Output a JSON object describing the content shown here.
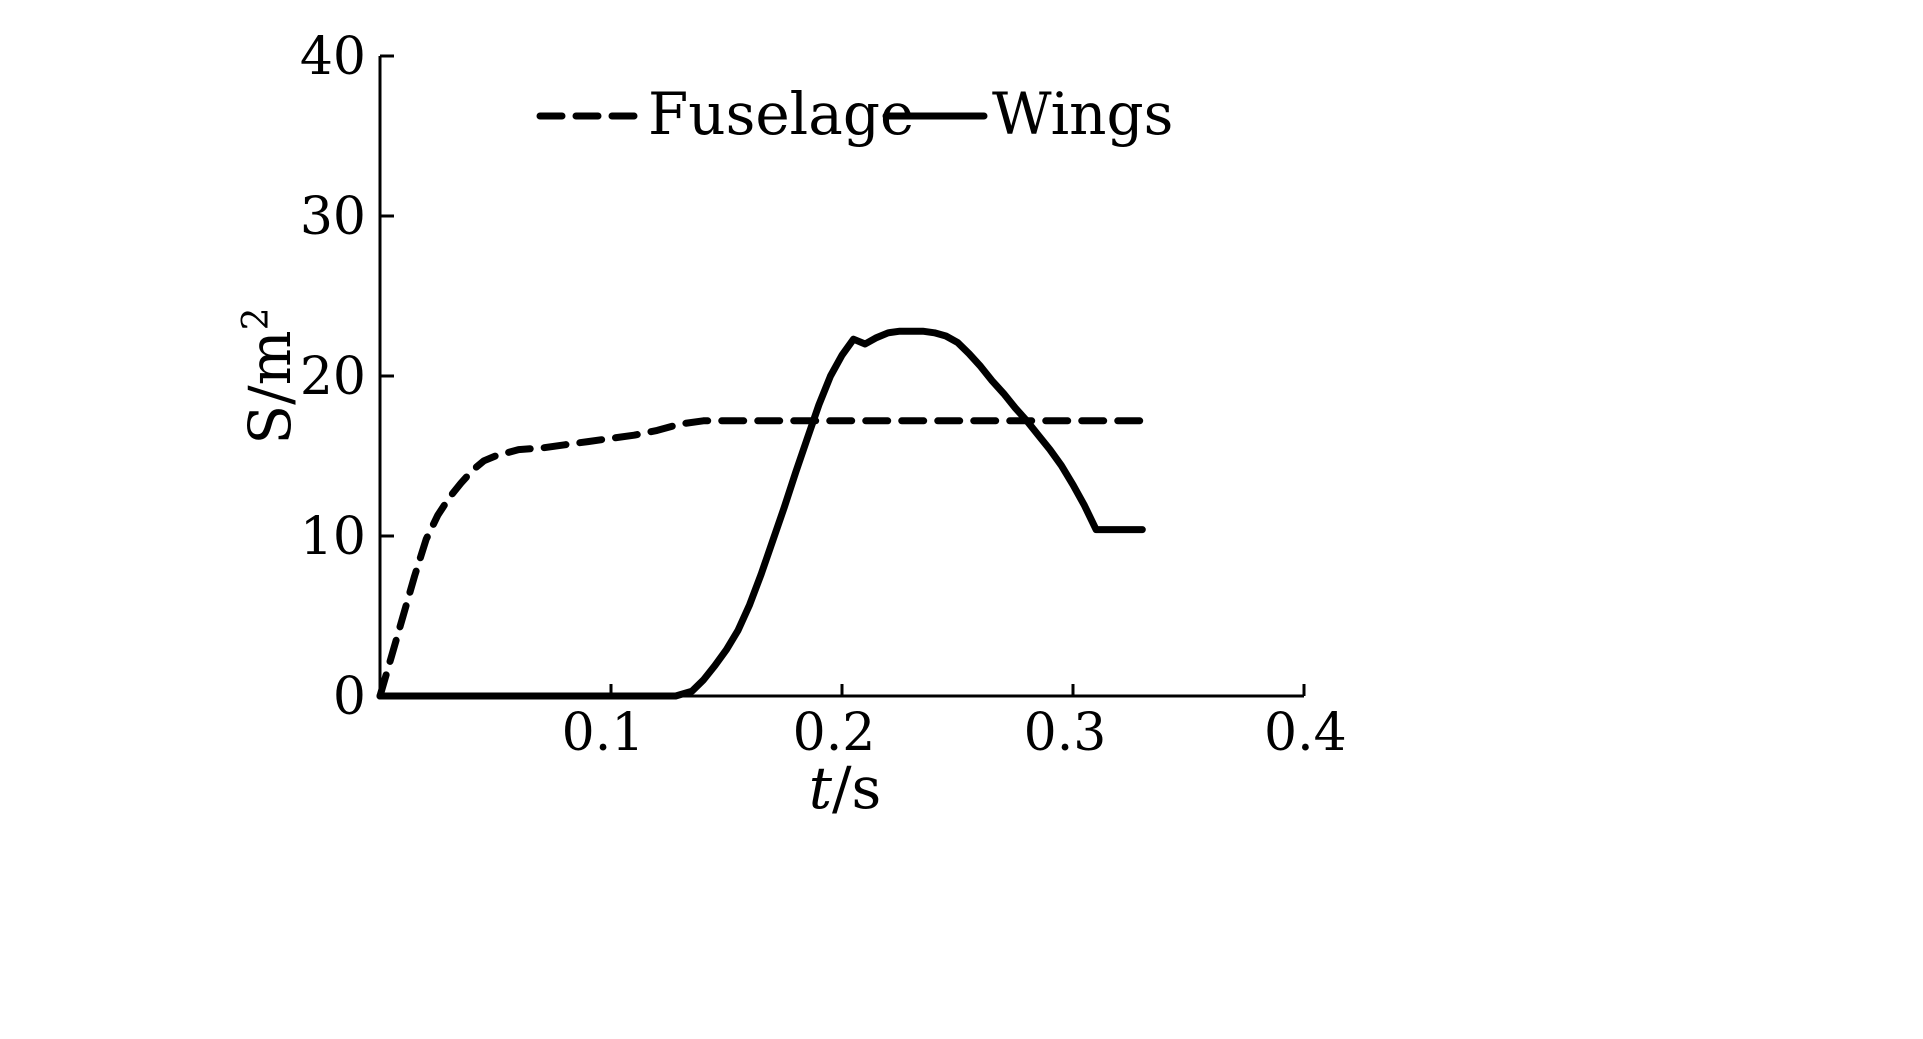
{
  "chart_data": {
    "type": "line",
    "title": "",
    "xlabel_italic": "t",
    "xlabel_unit": "/s",
    "ylabel_main": "S/m",
    "ylabel_sup": "2",
    "xlim": [
      0,
      0.4
    ],
    "ylim": [
      0,
      40
    ],
    "x_ticks": [
      0.1,
      0.2,
      0.3,
      0.4
    ],
    "x_tick_labels": [
      "0.1",
      "0.2",
      "0.3",
      "0.4"
    ],
    "y_ticks": [
      0,
      10,
      20,
      30,
      40
    ],
    "y_tick_labels": [
      "0",
      "10",
      "20",
      "30",
      "40"
    ],
    "grid": false,
    "legend": "top-center",
    "series": [
      {
        "name": "Fuselage",
        "style": "dashed",
        "color": "#000000",
        "x": [
          0,
          0.005,
          0.01,
          0.015,
          0.02,
          0.025,
          0.03,
          0.035,
          0.04,
          0.045,
          0.05,
          0.06,
          0.07,
          0.08,
          0.09,
          0.1,
          0.11,
          0.12,
          0.13,
          0.14,
          0.15,
          0.2,
          0.25,
          0.3,
          0.33
        ],
        "y": [
          0,
          2.5,
          5.0,
          7.5,
          9.8,
          11.3,
          12.4,
          13.3,
          14.1,
          14.7,
          15.0,
          15.4,
          15.5,
          15.7,
          15.9,
          16.1,
          16.3,
          16.6,
          17.0,
          17.2,
          17.2,
          17.2,
          17.2,
          17.2,
          17.2
        ]
      },
      {
        "name": "Wings",
        "style": "solid",
        "color": "#000000",
        "x": [
          0,
          0.05,
          0.1,
          0.12,
          0.128,
          0.135,
          0.14,
          0.145,
          0.15,
          0.155,
          0.16,
          0.165,
          0.17,
          0.175,
          0.18,
          0.185,
          0.19,
          0.195,
          0.2,
          0.205,
          0.21,
          0.215,
          0.22,
          0.225,
          0.23,
          0.235,
          0.24,
          0.245,
          0.25,
          0.255,
          0.26,
          0.265,
          0.27,
          0.275,
          0.28,
          0.285,
          0.29,
          0.295,
          0.3,
          0.305,
          0.31,
          0.315,
          0.32,
          0.325,
          0.33
        ],
        "y": [
          0,
          0,
          0,
          0,
          0,
          0.3,
          1.0,
          1.9,
          2.9,
          4.1,
          5.7,
          7.6,
          9.7,
          11.8,
          14.0,
          16.1,
          18.2,
          20.0,
          21.3,
          22.3,
          22.0,
          22.4,
          22.7,
          22.8,
          22.8,
          22.8,
          22.7,
          22.5,
          22.1,
          21.4,
          20.6,
          19.7,
          18.9,
          18.0,
          17.2,
          16.3,
          15.4,
          14.4,
          13.2,
          11.9,
          10.4,
          10.4,
          10.4,
          10.4,
          10.4
        ]
      }
    ]
  }
}
